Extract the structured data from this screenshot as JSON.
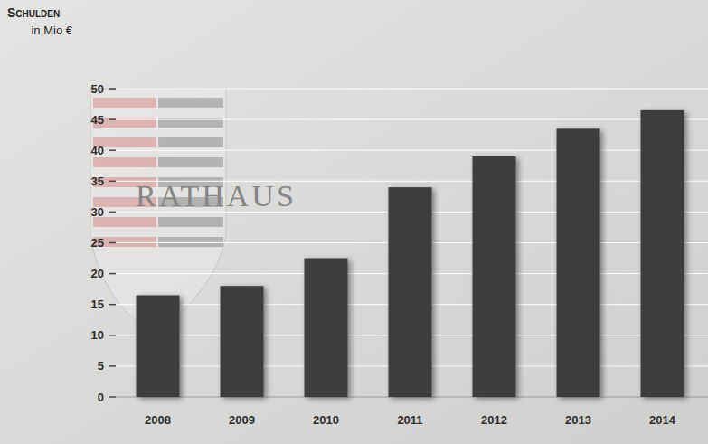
{
  "chart_data": {
    "type": "bar",
    "title": "Schulden",
    "y_label": "in Mio €",
    "annotations": [
      "RATHAUS"
    ],
    "categories": [
      "2008",
      "2009",
      "2010",
      "2011",
      "2012",
      "2013",
      "2014"
    ],
    "values": [
      16.5,
      18,
      22.5,
      34,
      39,
      43.5,
      46.5
    ],
    "color": "#3c3c3c",
    "ylim": [
      0,
      50
    ],
    "yticks": [
      0,
      5,
      10,
      15,
      20,
      25,
      30,
      35,
      40,
      45,
      50
    ],
    "grid": true
  }
}
